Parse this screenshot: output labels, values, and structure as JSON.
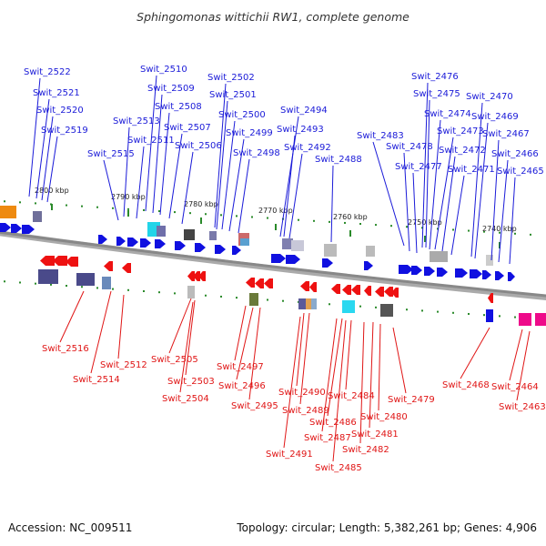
{
  "title": "Sphingomonas wittichii RW1, complete genome",
  "footer": {
    "accession": "Accession: NC_009511",
    "summary": "Topology: circular; Length: 5,382,261 bp; Genes: 4,906"
  },
  "colors": {
    "forward": "#1010e0",
    "reverse": "#ee1111",
    "backbone": "#888888",
    "tick": "#2a8a2a"
  },
  "scale_labels": [
    "2800 kbp",
    "2790 kbp",
    "2780 kbp",
    "2770 kbp",
    "2760 kbp",
    "2750 kbp",
    "2740 kbp"
  ],
  "forward_labels": [
    "Swit_2522",
    "Swit_2521",
    "Swit_2520",
    "Swit_2519",
    "Swit_2510",
    "Swit_2509",
    "Swit_2508",
    "Swit_2513",
    "Swit_2507",
    "Swit_2511",
    "Swit_2515",
    "Swit_2506",
    "Swit_2502",
    "Swit_2501",
    "Swit_2500",
    "Swit_2499",
    "Swit_2498",
    "Swit_2494",
    "Swit_2493",
    "Swit_2492",
    "Swit_2488",
    "Swit_2483",
    "Swit_2476",
    "Swit_2475",
    "Swit_2474",
    "Swit_2473",
    "Swit_2478",
    "Swit_2472",
    "Swit_2477",
    "Swit_2471",
    "Swit_2470",
    "Swit_2469",
    "Swit_2467",
    "Swit_2466",
    "Swit_2465"
  ],
  "reverse_labels": [
    "Swit_2516",
    "Swit_2514",
    "Swit_2512",
    "Swit_2505",
    "Swit_2503",
    "Swit_2504",
    "Swit_2497",
    "Swit_2496",
    "Swit_2495",
    "Swit_2490",
    "Swit_2489",
    "Swit_2491",
    "Swit_2487",
    "Swit_2486",
    "Swit_2485",
    "Swit_2484",
    "Swit_2482",
    "Swit_2481",
    "Swit_2480",
    "Swit_2479",
    "Swit_2468",
    "Swit_2464",
    "Swit_2463"
  ]
}
